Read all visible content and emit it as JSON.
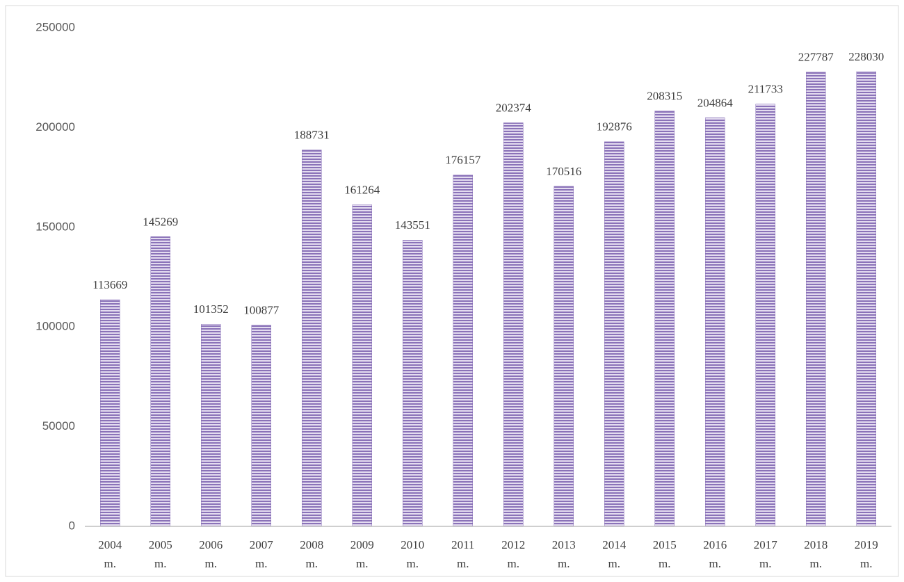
{
  "chart_data": {
    "type": "bar",
    "categories": [
      "2004 m.",
      "2005 m.",
      "2006 m.",
      "2007 m.",
      "2008 m.",
      "2009 m.",
      "2010 m.",
      "2011 m.",
      "2012 m.",
      "2013 m.",
      "2014 m.",
      "2015 m.",
      "2016 m.",
      "2017 m.",
      "2018 m.",
      "2019 m."
    ],
    "values": [
      113669,
      145269,
      101352,
      100877,
      188731,
      161264,
      143551,
      176157,
      202374,
      170516,
      192876,
      208315,
      204864,
      211733,
      227787,
      228030
    ],
    "color": "#8a72b8",
    "ylim": [
      0,
      250000
    ],
    "yticks": [
      0,
      50000,
      100000,
      150000,
      200000,
      250000
    ],
    "grid": false
  }
}
